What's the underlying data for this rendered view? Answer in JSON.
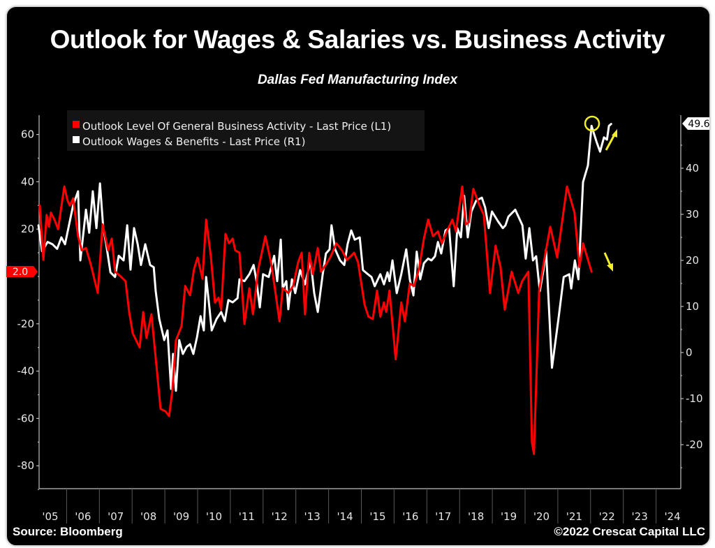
{
  "header": {
    "title": "Outlook for Wages & Salaries vs. Business Activity",
    "subtitle": "Dallas Fed Manufacturing Index"
  },
  "footer": {
    "source": "Source: Bloomberg",
    "copyright": "©2022 Crescat Capital LLC"
  },
  "colors": {
    "background": "#000000",
    "business_activity": "#ff0000",
    "wages": "#ffffff",
    "annotation": "#f2ee2a",
    "axis": "#bfbfbf",
    "legend_bg": "#141414"
  },
  "chart_data": {
    "type": "line",
    "title": "Outlook for Wages & Salaries vs. Business Activity",
    "subtitle": "Dallas Fed Manufacturing Index",
    "xlabel": "",
    "x_tick_labels": [
      "'05",
      "'06",
      "'07",
      "'08",
      "'09",
      "'10",
      "'11",
      "'12",
      "'13",
      "'14",
      "'15",
      "'16",
      "'17",
      "'18",
      "'19",
      "'20",
      "'21",
      "'22",
      "'23",
      "'24"
    ],
    "x_range": [
      2005,
      2025
    ],
    "left_axis": {
      "label": "",
      "range": [
        -90,
        67
      ],
      "ticks": [
        60,
        40,
        20,
        -20,
        -40,
        -60,
        -80
      ],
      "last_value_label": "2.0"
    },
    "right_axis": {
      "label": "",
      "range": [
        -28,
        52
      ],
      "ticks": [
        40,
        30,
        20,
        10,
        0,
        -10,
        -20
      ],
      "last_value_label": "49.6"
    },
    "grid": false,
    "legend": {
      "placement": "top-left",
      "entries": [
        {
          "name": "Outlook Level Of General Business Activity - Last Price (L1)",
          "color": "#ff0000"
        },
        {
          "name": "Outlook Wages & Benefits - Last Price (R1)",
          "color": "#ffffff"
        }
      ]
    },
    "annotations": [
      {
        "type": "circle",
        "target": "Outlook Wages & Benefits latest value",
        "color": "#f2ee2a"
      },
      {
        "type": "arrow",
        "direction": "up",
        "target": "Outlook Wages & Benefits",
        "color": "#f2ee2a"
      },
      {
        "type": "arrow",
        "direction": "down",
        "target": "Outlook Level Of General Business Activity",
        "color": "#f2ee2a"
      }
    ],
    "series": [
      {
        "name": "Outlook Level Of General Business Activity - Last Price (L1)",
        "axis": "left",
        "color": "#ff0000",
        "points": [
          [
            2005.18,
            30
          ],
          [
            2005.29,
            7
          ],
          [
            2005.39,
            26
          ],
          [
            2005.46,
            21
          ],
          [
            2005.52,
            27
          ],
          [
            2005.63,
            24
          ],
          [
            2005.74,
            20
          ],
          [
            2005.93,
            38
          ],
          [
            2006.03,
            32
          ],
          [
            2006.1,
            30
          ],
          [
            2006.2,
            33
          ],
          [
            2006.35,
            17
          ],
          [
            2006.46,
            11
          ],
          [
            2006.59,
            12
          ],
          [
            2006.74,
            5
          ],
          [
            2006.95,
            -7
          ],
          [
            2007.1,
            22
          ],
          [
            2007.27,
            11
          ],
          [
            2007.38,
            16
          ],
          [
            2007.48,
            2
          ],
          [
            2007.65,
            0
          ],
          [
            2007.8,
            -2
          ],
          [
            2007.91,
            -15
          ],
          [
            2008.02,
            -24
          ],
          [
            2008.23,
            -30
          ],
          [
            2008.34,
            -15
          ],
          [
            2008.44,
            -26
          ],
          [
            2008.59,
            -16
          ],
          [
            2008.76,
            -40
          ],
          [
            2008.87,
            -56
          ],
          [
            2009.02,
            -57
          ],
          [
            2009.13,
            -59
          ],
          [
            2009.23,
            -48
          ],
          [
            2009.34,
            -27
          ],
          [
            2009.51,
            -21
          ],
          [
            2009.62,
            -4
          ],
          [
            2009.77,
            -8
          ],
          [
            2009.89,
            3
          ],
          [
            2010.0,
            8
          ],
          [
            2010.15,
            -1
          ],
          [
            2010.26,
            24
          ],
          [
            2010.4,
            9
          ],
          [
            2010.53,
            -11
          ],
          [
            2010.64,
            -9
          ],
          [
            2010.72,
            -14
          ],
          [
            2010.85,
            18
          ],
          [
            2010.96,
            14
          ],
          [
            2011.07,
            16
          ],
          [
            2011.15,
            11
          ],
          [
            2011.28,
            10
          ],
          [
            2011.43,
            -20
          ],
          [
            2011.58,
            -5
          ],
          [
            2011.69,
            -16
          ],
          [
            2011.85,
            3
          ],
          [
            2012.07,
            17
          ],
          [
            2012.24,
            6
          ],
          [
            2012.35,
            -4
          ],
          [
            2012.5,
            -19
          ],
          [
            2012.6,
            -5
          ],
          [
            2012.77,
            -7
          ],
          [
            2012.92,
            -4
          ],
          [
            2013.07,
            6
          ],
          [
            2013.18,
            10
          ],
          [
            2013.28,
            -16
          ],
          [
            2013.41,
            10
          ],
          [
            2013.52,
            1
          ],
          [
            2013.67,
            12
          ],
          [
            2013.77,
            2
          ],
          [
            2013.92,
            5
          ],
          [
            2014.05,
            8
          ],
          [
            2014.24,
            14
          ],
          [
            2014.41,
            11
          ],
          [
            2014.56,
            7
          ],
          [
            2014.78,
            10
          ],
          [
            2014.9,
            6
          ],
          [
            2015.1,
            -12
          ],
          [
            2015.22,
            -17
          ],
          [
            2015.35,
            -18
          ],
          [
            2015.48,
            -6
          ],
          [
            2015.58,
            -17
          ],
          [
            2015.69,
            -11
          ],
          [
            2015.76,
            -15
          ],
          [
            2015.86,
            -6
          ],
          [
            2016.05,
            -35
          ],
          [
            2016.22,
            -11
          ],
          [
            2016.33,
            -19
          ],
          [
            2016.48,
            -3
          ],
          [
            2016.61,
            -4
          ],
          [
            2016.76,
            3
          ],
          [
            2016.91,
            16
          ],
          [
            2017.04,
            24
          ],
          [
            2017.19,
            17
          ],
          [
            2017.34,
            19
          ],
          [
            2017.46,
            14
          ],
          [
            2017.61,
            19
          ],
          [
            2017.78,
            24
          ],
          [
            2017.89,
            19
          ],
          [
            2018.08,
            38
          ],
          [
            2018.19,
            22
          ],
          [
            2018.29,
            23
          ],
          [
            2018.42,
            37
          ],
          [
            2018.61,
            30
          ],
          [
            2018.74,
            26
          ],
          [
            2018.93,
            -7
          ],
          [
            2019.1,
            13
          ],
          [
            2019.25,
            4
          ],
          [
            2019.38,
            -14
          ],
          [
            2019.59,
            2
          ],
          [
            2019.79,
            -7
          ],
          [
            2019.91,
            -2
          ],
          [
            2020.1,
            2
          ],
          [
            2020.21,
            -70
          ],
          [
            2020.27,
            -75
          ],
          [
            2020.43,
            -6
          ],
          [
            2020.6,
            8
          ],
          [
            2020.77,
            21
          ],
          [
            2020.98,
            8
          ],
          [
            2021.28,
            38
          ],
          [
            2021.51,
            27
          ],
          [
            2021.66,
            4
          ],
          [
            2021.77,
            14
          ],
          [
            2022.03,
            2
          ]
        ]
      },
      {
        "name": "Outlook Wages & Benefits - Last Price (R1)",
        "axis": "right",
        "color": "#ffffff",
        "points": [
          [
            2005.14,
            27.6
          ],
          [
            2005.25,
            22
          ],
          [
            2005.42,
            24
          ],
          [
            2005.57,
            23.5
          ],
          [
            2005.71,
            22.5
          ],
          [
            2005.84,
            25
          ],
          [
            2005.95,
            23.5
          ],
          [
            2006.2,
            32
          ],
          [
            2006.35,
            35
          ],
          [
            2006.42,
            20
          ],
          [
            2006.59,
            31
          ],
          [
            2006.69,
            26
          ],
          [
            2006.8,
            35
          ],
          [
            2006.91,
            27
          ],
          [
            2007.02,
            36.7
          ],
          [
            2007.12,
            27
          ],
          [
            2007.21,
            23.5
          ],
          [
            2007.34,
            17.4
          ],
          [
            2007.48,
            16.4
          ],
          [
            2007.59,
            21
          ],
          [
            2007.74,
            20
          ],
          [
            2007.85,
            27.6
          ],
          [
            2007.95,
            18
          ],
          [
            2008.06,
            27
          ],
          [
            2008.17,
            23.5
          ],
          [
            2008.27,
            19
          ],
          [
            2008.4,
            23.5
          ],
          [
            2008.55,
            19
          ],
          [
            2008.66,
            18.5
          ],
          [
            2008.72,
            13.3
          ],
          [
            2008.83,
            7.3
          ],
          [
            2008.98,
            2.7
          ],
          [
            2009.08,
            4.8
          ],
          [
            2009.19,
            -7.9
          ],
          [
            2009.25,
            -0.3
          ],
          [
            2009.34,
            -8.3
          ],
          [
            2009.44,
            2.7
          ],
          [
            2009.55,
            -0.3
          ],
          [
            2009.66,
            1.2
          ],
          [
            2009.77,
            1.8
          ],
          [
            2009.87,
            -0.3
          ],
          [
            2009.98,
            3.3
          ],
          [
            2010.09,
            7.9
          ],
          [
            2010.19,
            4.8
          ],
          [
            2010.26,
            16.4
          ],
          [
            2010.36,
            9.8
          ],
          [
            2010.43,
            4.8
          ],
          [
            2010.58,
            7.3
          ],
          [
            2010.72,
            8.8
          ],
          [
            2010.83,
            6.8
          ],
          [
            2010.94,
            11.4
          ],
          [
            2011.07,
            10.9
          ],
          [
            2011.22,
            11.8
          ],
          [
            2011.28,
            15.9
          ],
          [
            2011.43,
            15.5
          ],
          [
            2011.58,
            17
          ],
          [
            2011.71,
            19
          ],
          [
            2011.79,
            15.9
          ],
          [
            2011.9,
            9.8
          ],
          [
            2012.0,
            17
          ],
          [
            2012.17,
            16.4
          ],
          [
            2012.34,
            21
          ],
          [
            2012.43,
            15.5
          ],
          [
            2012.54,
            24.5
          ],
          [
            2012.6,
            13.9
          ],
          [
            2012.71,
            15.5
          ],
          [
            2012.77,
            9.4
          ],
          [
            2012.88,
            15.9
          ],
          [
            2012.98,
            12.9
          ],
          [
            2013.13,
            17.9
          ],
          [
            2013.28,
            14.8
          ],
          [
            2013.45,
            20
          ],
          [
            2013.56,
            12.9
          ],
          [
            2013.67,
            8.8
          ],
          [
            2013.82,
            17
          ],
          [
            2013.92,
            21.5
          ],
          [
            2014.03,
            22.4
          ],
          [
            2014.09,
            27.6
          ],
          [
            2014.2,
            22.4
          ],
          [
            2014.35,
            20
          ],
          [
            2014.48,
            19
          ],
          [
            2014.58,
            23.5
          ],
          [
            2014.69,
            26.5
          ],
          [
            2014.8,
            24.5
          ],
          [
            2014.95,
            25
          ],
          [
            2015.05,
            17.9
          ],
          [
            2015.2,
            17
          ],
          [
            2015.31,
            16.4
          ],
          [
            2015.41,
            14.4
          ],
          [
            2015.48,
            15.5
          ],
          [
            2015.58,
            17
          ],
          [
            2015.69,
            14.8
          ],
          [
            2015.8,
            17.4
          ],
          [
            2015.86,
            15.5
          ],
          [
            2015.95,
            20
          ],
          [
            2016.08,
            12.9
          ],
          [
            2016.22,
            17
          ],
          [
            2016.37,
            22.4
          ],
          [
            2016.48,
            15.9
          ],
          [
            2016.59,
            12.4
          ],
          [
            2016.69,
            21.9
          ],
          [
            2016.8,
            15.9
          ],
          [
            2016.91,
            19.4
          ],
          [
            2017.04,
            20.4
          ],
          [
            2017.14,
            20
          ],
          [
            2017.25,
            20.9
          ],
          [
            2017.34,
            24
          ],
          [
            2017.44,
            21.5
          ],
          [
            2017.57,
            26.5
          ],
          [
            2017.68,
            27
          ],
          [
            2017.82,
            14.4
          ],
          [
            2017.93,
            27
          ],
          [
            2018.04,
            25
          ],
          [
            2018.14,
            34
          ],
          [
            2018.25,
            25
          ],
          [
            2018.36,
            30.6
          ],
          [
            2018.51,
            33
          ],
          [
            2018.68,
            33.6
          ],
          [
            2018.78,
            31.5
          ],
          [
            2018.89,
            27
          ],
          [
            2018.99,
            30.6
          ],
          [
            2019.17,
            28.5
          ],
          [
            2019.32,
            27
          ],
          [
            2019.4,
            27.6
          ],
          [
            2019.49,
            29.5
          ],
          [
            2019.7,
            31
          ],
          [
            2019.92,
            27.6
          ],
          [
            2020.02,
            20.4
          ],
          [
            2020.13,
            27
          ],
          [
            2020.24,
            20
          ],
          [
            2020.34,
            20.9
          ],
          [
            2020.45,
            13.3
          ],
          [
            2020.56,
            17.9
          ],
          [
            2020.64,
            22.4
          ],
          [
            2020.82,
            -3.3
          ],
          [
            2021.03,
            7.9
          ],
          [
            2021.18,
            16.4
          ],
          [
            2021.35,
            17
          ],
          [
            2021.41,
            13.9
          ],
          [
            2021.52,
            20
          ],
          [
            2021.63,
            15.9
          ],
          [
            2021.77,
            37
          ],
          [
            2021.92,
            40.6
          ],
          [
            2022.03,
            49.2
          ],
          [
            2022.18,
            45.8
          ],
          [
            2022.29,
            43.6
          ],
          [
            2022.41,
            46.7
          ],
          [
            2022.5,
            46.2
          ],
          [
            2022.56,
            49.2
          ],
          [
            2022.63,
            49.6
          ]
        ]
      }
    ]
  }
}
